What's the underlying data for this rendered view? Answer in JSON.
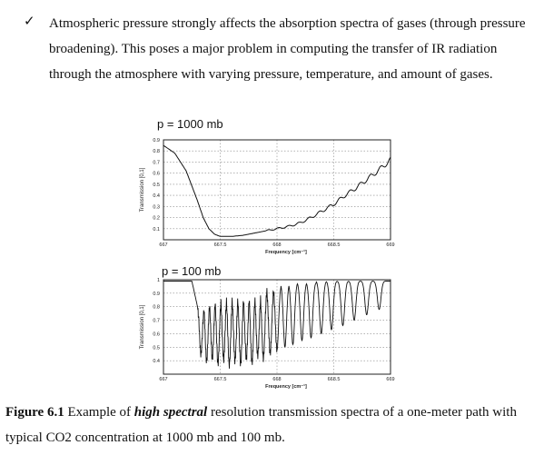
{
  "bullet": {
    "marker": "✓",
    "text": "Atmospheric pressure strongly affects the absorption spectra of gases (through pressure broadening). This poses a major problem in computing the transfer of IR radiation through the atmosphere with varying pressure, temperature, and amount of gases."
  },
  "caption": {
    "figure_label": "Figure 6.1",
    "text_before": " Example of ",
    "emphasis": "high spectral",
    "text_after": " resolution transmission spectra of a one-meter path with typical CO2 concentration at 1000 mb and 100 mb."
  },
  "chart_data": [
    {
      "type": "line",
      "title": "p = 1000 mb",
      "xlabel": "Frequency [cm⁻¹]",
      "ylabel": "Transmission [0,1]",
      "xlim": [
        667,
        669
      ],
      "ylim": [
        0.0,
        0.9
      ],
      "xticks": [
        667,
        667.5,
        668,
        668.5,
        669
      ],
      "xtick_labels": [
        "667",
        "667.5",
        "668",
        "668.5",
        "669"
      ],
      "yticks": [
        0.1,
        0.2,
        0.3,
        0.4,
        0.5,
        0.6,
        0.7,
        0.8,
        0.9
      ],
      "ytick_labels": [
        "0.1",
        "0.2",
        "0.3",
        "0.4",
        "0.5",
        "0.6",
        "0.7",
        "0.8",
        "0.9"
      ],
      "grid": true,
      "series": [
        {
          "x": [
            667.0,
            667.1,
            667.2,
            667.3,
            667.35,
            667.4,
            667.45,
            667.5,
            667.6,
            667.7,
            667.8,
            667.9,
            668.0,
            668.1,
            668.2,
            668.3,
            668.4,
            668.5,
            668.6,
            668.7,
            668.8,
            668.9,
            669.0
          ],
          "y": [
            0.85,
            0.78,
            0.62,
            0.35,
            0.2,
            0.1,
            0.05,
            0.03,
            0.03,
            0.04,
            0.06,
            0.08,
            0.1,
            0.12,
            0.15,
            0.2,
            0.26,
            0.32,
            0.4,
            0.47,
            0.55,
            0.63,
            0.72
          ]
        }
      ]
    },
    {
      "type": "line",
      "title": "p = 100 mb",
      "xlabel": "Frequency [cm⁻¹]",
      "ylabel": "Transmission [0,1]",
      "xlim": [
        667,
        669
      ],
      "ylim": [
        0.3,
        1.0
      ],
      "xticks": [
        667,
        667.5,
        668,
        668.5,
        669
      ],
      "xtick_labels": [
        "667",
        "667.5",
        "668",
        "668.5",
        "669"
      ],
      "yticks": [
        0.4,
        0.5,
        0.6,
        0.7,
        0.8,
        0.9,
        1.0
      ],
      "ytick_labels": [
        "0.4",
        "0.5",
        "0.6",
        "0.7",
        "0.8",
        "0.9",
        "1"
      ],
      "grid": true,
      "series": [
        {
          "baseline_x": [
            667.0,
            667.25,
            667.3
          ],
          "baseline_y": [
            0.99,
            0.99,
            0.96
          ],
          "line_centers": [
            667.33,
            667.38,
            667.43,
            667.48,
            667.53,
            667.58,
            667.63,
            667.68,
            667.73,
            667.78,
            667.83,
            667.88,
            667.94,
            668.0,
            668.07,
            668.14,
            668.22,
            668.3,
            668.39,
            668.48,
            668.58,
            668.68,
            668.79,
            668.9
          ],
          "line_minima": [
            0.45,
            0.4,
            0.42,
            0.38,
            0.41,
            0.37,
            0.4,
            0.38,
            0.42,
            0.39,
            0.44,
            0.42,
            0.46,
            0.48,
            0.5,
            0.52,
            0.55,
            0.57,
            0.6,
            0.63,
            0.66,
            0.7,
            0.74,
            0.78
          ],
          "line_maxima": [
            0.8,
            0.85,
            0.88,
            0.9,
            0.92,
            0.93,
            0.94,
            0.95,
            0.95,
            0.96,
            0.96,
            0.97,
            0.97,
            0.97,
            0.98,
            0.98,
            0.98,
            0.98,
            0.99,
            0.99,
            0.99,
            0.99,
            0.99,
            0.99
          ]
        }
      ]
    }
  ]
}
